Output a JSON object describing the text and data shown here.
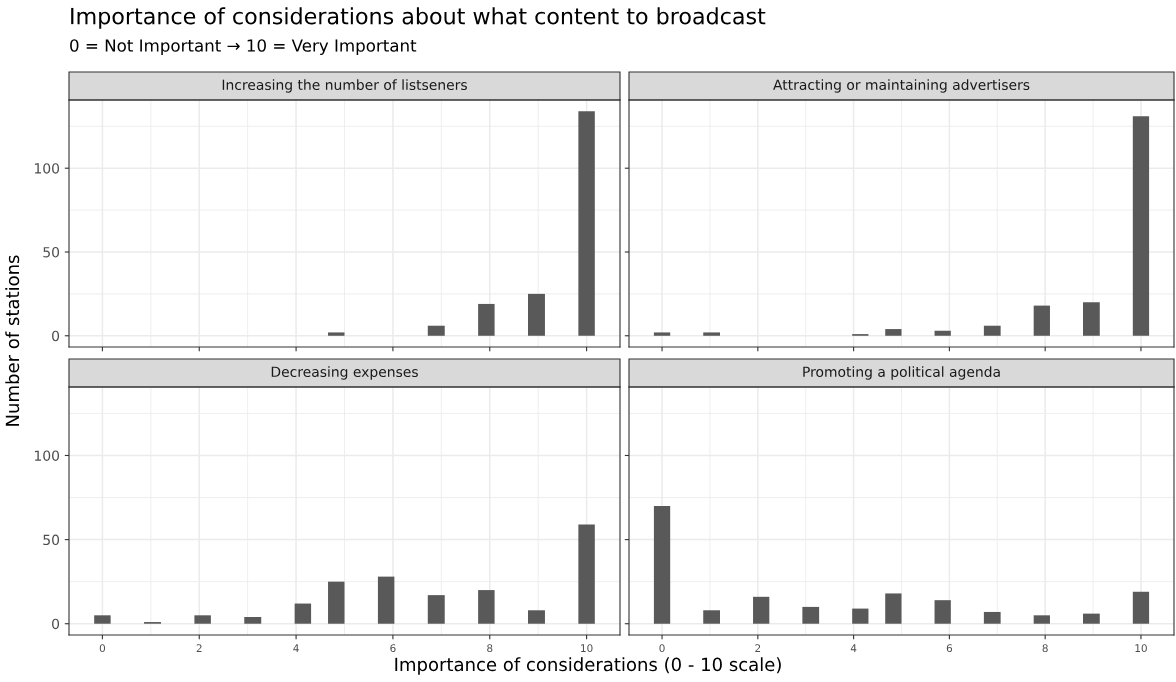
{
  "chart_data": [
    {
      "type": "histogram",
      "title": "Increasing the number of listseners",
      "ylabel": "Number of stations",
      "annotations": [
        "Importance of considerations about what content to broadcast",
        "0 = Not Important → 10 = Very Important"
      ],
      "bins": [
        -0.17,
        0.17,
        0.52,
        0.86,
        1.21,
        1.55,
        1.9,
        2.24,
        2.59,
        2.93,
        3.28,
        3.62,
        3.97,
        4.31,
        4.66,
        5.0,
        5.34,
        5.69,
        6.03,
        6.38,
        6.72,
        7.07,
        7.41,
        7.76,
        8.1,
        8.45,
        8.79,
        9.14,
        9.48,
        9.83,
        10.17
      ],
      "values": [
        0,
        0,
        0,
        0,
        0,
        0,
        0,
        0,
        0,
        0,
        0,
        0,
        0,
        0,
        2,
        0,
        0,
        0,
        0,
        0,
        6,
        0,
        0,
        19,
        0,
        0,
        25,
        0,
        0,
        134
      ],
      "color": "#595959",
      "xlim": [
        -0.69,
        10.69
      ],
      "ylim": [
        -6.7,
        140.7
      ],
      "xticks": [
        0,
        2,
        4,
        6,
        8,
        10
      ],
      "yticks": [
        0,
        50,
        100
      ],
      "grid": true,
      "tick_labels": "y"
    },
    {
      "type": "histogram",
      "title": "Attracting or maintaining advertisers",
      "bins": [
        -0.17,
        0.17,
        0.52,
        0.86,
        1.21,
        1.55,
        1.9,
        2.24,
        2.59,
        2.93,
        3.28,
        3.62,
        3.97,
        4.31,
        4.66,
        5.0,
        5.34,
        5.69,
        6.03,
        6.38,
        6.72,
        7.07,
        7.41,
        7.76,
        8.1,
        8.45,
        8.79,
        9.14,
        9.48,
        9.83,
        10.17
      ],
      "values": [
        2,
        0,
        0,
        2,
        0,
        0,
        0,
        0,
        0,
        0,
        0,
        0,
        1,
        0,
        4,
        0,
        0,
        3,
        0,
        0,
        6,
        0,
        0,
        18,
        0,
        0,
        20,
        0,
        0,
        131
      ],
      "color": "#595959",
      "xlim": [
        -0.69,
        10.69
      ],
      "ylim": [
        -6.7,
        140.7
      ],
      "xticks": [
        0,
        2,
        4,
        6,
        8,
        10
      ],
      "yticks": [
        0,
        50,
        100
      ],
      "grid": true,
      "tick_labels": false
    },
    {
      "type": "histogram",
      "title": "Decreasing expenses",
      "xlabel": "Importance of considerations (0 - 10 scale)",
      "bins": [
        -0.17,
        0.17,
        0.52,
        0.86,
        1.21,
        1.55,
        1.9,
        2.24,
        2.59,
        2.93,
        3.28,
        3.62,
        3.97,
        4.31,
        4.66,
        5.0,
        5.34,
        5.69,
        6.03,
        6.38,
        6.72,
        7.07,
        7.41,
        7.76,
        8.1,
        8.45,
        8.79,
        9.14,
        9.48,
        9.83,
        10.17
      ],
      "values": [
        5,
        0,
        0,
        1,
        0,
        0,
        5,
        0,
        0,
        4,
        0,
        0,
        12,
        0,
        25,
        0,
        0,
        28,
        0,
        0,
        17,
        0,
        0,
        20,
        0,
        0,
        8,
        0,
        0,
        59
      ],
      "color": "#595959",
      "xlim": [
        -0.69,
        10.69
      ],
      "ylim": [
        -6.7,
        140.7
      ],
      "xticks": [
        0,
        2,
        4,
        6,
        8,
        10
      ],
      "yticks": [
        0,
        50,
        100
      ],
      "grid": true
    },
    {
      "type": "histogram",
      "title": "Promoting a political agenda",
      "bins": [
        -0.17,
        0.17,
        0.52,
        0.86,
        1.21,
        1.55,
        1.9,
        2.24,
        2.59,
        2.93,
        3.28,
        3.62,
        3.97,
        4.31,
        4.66,
        5.0,
        5.34,
        5.69,
        6.03,
        6.38,
        6.72,
        7.07,
        7.41,
        7.76,
        8.1,
        8.45,
        8.79,
        9.14,
        9.48,
        9.83,
        10.17
      ],
      "values": [
        70,
        0,
        0,
        8,
        0,
        0,
        16,
        0,
        0,
        10,
        0,
        0,
        9,
        0,
        18,
        0,
        0,
        14,
        0,
        0,
        7,
        0,
        0,
        5,
        0,
        0,
        6,
        0,
        0,
        19
      ],
      "color": "#595959",
      "xlim": [
        -0.69,
        10.69
      ],
      "ylim": [
        -6.7,
        140.7
      ],
      "xticks": [
        0,
        2,
        4,
        6,
        8,
        10
      ],
      "yticks": [
        0,
        50,
        100
      ],
      "grid": true,
      "tick_labels": "x"
    }
  ]
}
